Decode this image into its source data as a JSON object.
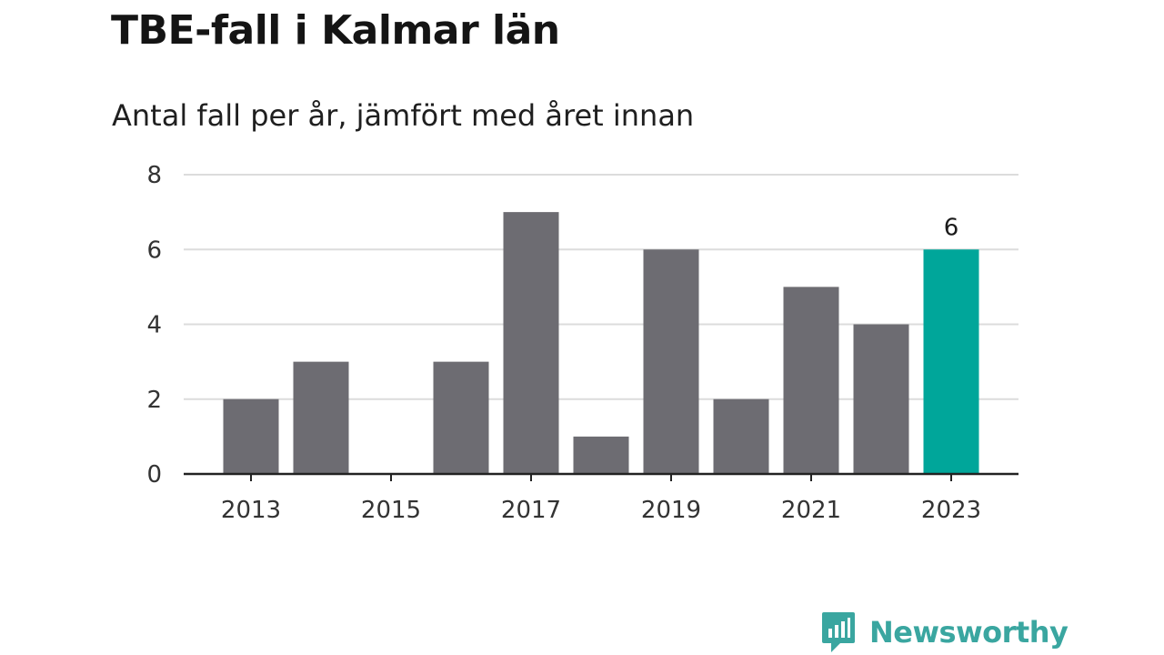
{
  "chart_data": {
    "type": "bar",
    "title": "TBE-fall i Kalmar län",
    "subtitle": "Antal fall per år, jämfört med året innan",
    "xlabel": "",
    "ylabel": "",
    "categories": [
      "2013",
      "2014",
      "2015",
      "2016",
      "2017",
      "2018",
      "2019",
      "2020",
      "2021",
      "2022",
      "2023"
    ],
    "values": [
      2,
      3,
      0,
      3,
      7,
      1,
      6,
      2,
      5,
      4,
      6
    ],
    "ylim": [
      0,
      8
    ],
    "y_ticks": [
      0,
      2,
      4,
      6,
      8
    ],
    "x_tick_labels": [
      "2013",
      "2015",
      "2017",
      "2019",
      "2021",
      "2023"
    ],
    "highlight_category": "2023",
    "highlight_value_label": "6",
    "grid": true,
    "colors": {
      "bar": "#6d6c72",
      "highlight": "#00a69a",
      "grid": "#dcdcdc",
      "axis": "#222222"
    }
  },
  "logo": {
    "text": "Newsworthy",
    "icon": "newsworthy-logo-icon",
    "color": "#3aa6a0"
  }
}
